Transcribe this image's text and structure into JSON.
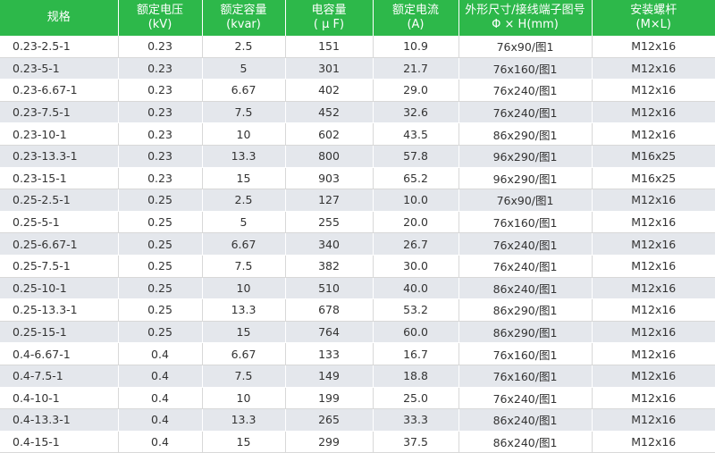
{
  "headers": [
    {
      "line1": "规格",
      "line2": ""
    },
    {
      "line1": "额定电压",
      "line2": "(kV)"
    },
    {
      "line1": "额定容量",
      "line2": "(kvar)"
    },
    {
      "line1": "电容量",
      "line2": "( μ F)"
    },
    {
      "line1": "额定电流",
      "line2": "(A)"
    },
    {
      "line1": "外形尺寸/接线端子图号",
      "line2": "Φ × H(mm)"
    },
    {
      "line1": "安装螺杆",
      "line2": "(M×L)"
    }
  ],
  "rows": [
    [
      "0.23-2.5-1",
      "0.23",
      "2.5",
      "151",
      "10.9",
      "76x90/图1",
      "M12x16"
    ],
    [
      "0.23-5-1",
      "0.23",
      "5",
      "301",
      "21.7",
      "76x160/图1",
      "M12x16"
    ],
    [
      "0.23-6.67-1",
      "0.23",
      "6.67",
      "402",
      "29.0",
      "76x240/图1",
      "M12x16"
    ],
    [
      "0.23-7.5-1",
      "0.23",
      "7.5",
      "452",
      "32.6",
      "76x240/图1",
      "M12x16"
    ],
    [
      "0.23-10-1",
      "0.23",
      "10",
      "602",
      "43.5",
      "86x290/图1",
      "M12x16"
    ],
    [
      "0.23-13.3-1",
      "0.23",
      "13.3",
      "800",
      "57.8",
      "96x290/图1",
      "M16x25"
    ],
    [
      "0.23-15-1",
      "0.23",
      "15",
      "903",
      "65.2",
      "96x290/图1",
      "M16x25"
    ],
    [
      "0.25-2.5-1",
      "0.25",
      "2.5",
      "127",
      "10.0",
      "76x90/图1",
      "M12x16"
    ],
    [
      "0.25-5-1",
      "0.25",
      "5",
      "255",
      "20.0",
      "76x160/图1",
      "M12x16"
    ],
    [
      "0.25-6.67-1",
      "0.25",
      "6.67",
      "340",
      "26.7",
      "76x240/图1",
      "M12x16"
    ],
    [
      "0.25-7.5-1",
      "0.25",
      "7.5",
      "382",
      "30.0",
      "76x240/图1",
      "M12x16"
    ],
    [
      "0.25-10-1",
      "0.25",
      "10",
      "510",
      "40.0",
      "86x240/图1",
      "M12x16"
    ],
    [
      "0.25-13.3-1",
      "0.25",
      "13.3",
      "678",
      "53.2",
      "86x290/图1",
      "M12x16"
    ],
    [
      "0.25-15-1",
      "0.25",
      "15",
      "764",
      "60.0",
      "86x290/图1",
      "M12x16"
    ],
    [
      "0.4-6.67-1",
      "0.4",
      "6.67",
      "133",
      "16.7",
      "76x160/图1",
      "M12x16"
    ],
    [
      "0.4-7.5-1",
      "0.4",
      "7.5",
      "149",
      "18.8",
      "76x160/图1",
      "M12x16"
    ],
    [
      "0.4-10-1",
      "0.4",
      "10",
      "199",
      "25.0",
      "76x240/图1",
      "M12x16"
    ],
    [
      "0.4-13.3-1",
      "0.4",
      "13.3",
      "265",
      "33.3",
      "86x240/图1",
      "M12x16"
    ],
    [
      "0.4-15-1",
      "0.4",
      "15",
      "299",
      "37.5",
      "86x240/图1",
      "M12x16"
    ]
  ],
  "colors": {
    "header_bg": "#2db84a",
    "stripe_bg": "#e4e7ec",
    "text": "#333333"
  }
}
